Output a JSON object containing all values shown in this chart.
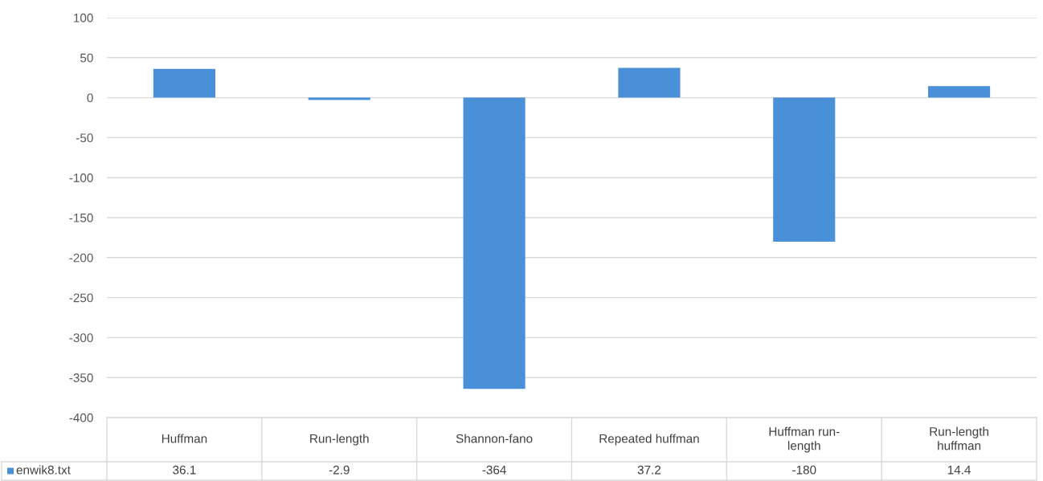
{
  "chart_data": {
    "type": "bar",
    "categories": [
      "Huffman",
      "Run-length",
      "Shannon-fano",
      "Repeated huffman",
      "Huffman run-length",
      "Run-length huffman"
    ],
    "series": [
      {
        "name": "enwik8.txt",
        "color": "#4a90d9",
        "values": [
          36.1,
          -2.9,
          -364,
          37.2,
          -180,
          14.4
        ]
      }
    ],
    "ylim": [
      -400,
      100
    ],
    "yticks": [
      -400,
      -350,
      -300,
      -250,
      -200,
      -150,
      -100,
      -50,
      0,
      50,
      100
    ],
    "grid": "y",
    "legend": "bottom",
    "data_labels": true
  }
}
